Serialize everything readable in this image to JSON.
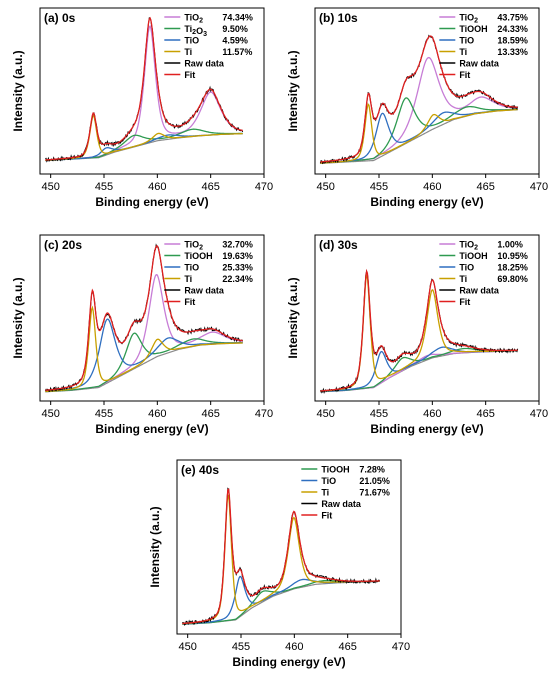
{
  "chart_data": [
    {
      "type": "line",
      "title": "(a) 0s",
      "xlabel": "Binding energy (eV)",
      "ylabel": "Intensity (a.u.)",
      "xlim": [
        449,
        470
      ],
      "xticks": [
        "450",
        "455",
        "460",
        "465",
        "470"
      ],
      "grid": false,
      "legend_position": "top-right",
      "legend": [
        {
          "name": "TiO",
          "sub": "2",
          "value": "74.34%",
          "color": "#c77dd6"
        },
        {
          "name": "Ti",
          "sub": "2",
          "name2": "O",
          "sub2": "3",
          "value": "9.50%",
          "color": "#2e9a50"
        },
        {
          "name": "TiO",
          "sub": "",
          "value": "4.59%",
          "color": "#2f6fc0"
        },
        {
          "name": "Ti",
          "sub": "",
          "value": "11.57%",
          "color": "#c8a000"
        },
        {
          "name": "Raw data",
          "sub": "",
          "value": "",
          "color": "#000000"
        },
        {
          "name": "Fit",
          "sub": "",
          "value": "",
          "color": "#e02020"
        }
      ],
      "background": {
        "x": [
          449.5,
          452,
          454.5,
          456,
          458,
          460,
          462,
          464,
          466,
          468
        ],
        "y": [
          0.06,
          0.07,
          0.08,
          0.12,
          0.16,
          0.2,
          0.22,
          0.235,
          0.245,
          0.25
        ]
      },
      "components": [
        {
          "name": "TiO2",
          "color": "#c77dd6",
          "peaks": [
            {
              "c": 459.3,
              "h": 0.82,
              "w": 0.55
            },
            {
              "c": 465.0,
              "h": 0.3,
              "w": 1.0
            }
          ]
        },
        {
          "name": "Ti2O3",
          "color": "#2e9a50",
          "peaks": [
            {
              "c": 457.8,
              "h": 0.08,
              "w": 1.0
            },
            {
              "c": 463.3,
              "h": 0.05,
              "w": 1.2
            }
          ]
        },
        {
          "name": "TiO",
          "color": "#2f6fc0",
          "peaks": [
            {
              "c": 455.2,
              "h": 0.05,
              "w": 0.6
            },
            {
              "c": 461.0,
              "h": 0.03,
              "w": 1.0
            }
          ]
        },
        {
          "name": "Ti",
          "color": "#c8a000",
          "peaks": [
            {
              "c": 454.0,
              "h": 0.3,
              "w": 0.35
            },
            {
              "c": 460.1,
              "h": 0.05,
              "w": 0.6
            }
          ]
        }
      ]
    },
    {
      "type": "line",
      "title": "(b) 10s",
      "xlabel": "Binding energy (eV)",
      "ylabel": "Intensity (a.u.)",
      "xlim": [
        449,
        470
      ],
      "xticks": [
        "450",
        "455",
        "460",
        "465",
        "470"
      ],
      "grid": false,
      "legend_position": "top-right",
      "legend": [
        {
          "name": "TiO",
          "sub": "2",
          "value": "43.75%",
          "color": "#c77dd6"
        },
        {
          "name": "TiOOH",
          "sub": "",
          "value": "24.33%",
          "color": "#2e9a50"
        },
        {
          "name": "TiO",
          "sub": "",
          "value": "18.59%",
          "color": "#2f6fc0"
        },
        {
          "name": "Ti",
          "sub": "",
          "value": "13.33%",
          "color": "#c8a000"
        },
        {
          "name": "Raw data",
          "sub": "",
          "value": "",
          "color": "#000000"
        },
        {
          "name": "Fit",
          "sub": "",
          "value": "",
          "color": "#e02020"
        }
      ],
      "background": {
        "x": [
          449.5,
          452,
          454.5,
          456,
          458,
          460,
          462,
          464,
          466,
          468
        ],
        "y": [
          0.04,
          0.05,
          0.06,
          0.12,
          0.2,
          0.28,
          0.35,
          0.39,
          0.41,
          0.42
        ]
      },
      "components": [
        {
          "name": "TiO2",
          "color": "#c77dd6",
          "peaks": [
            {
              "c": 459.6,
              "h": 0.52,
              "w": 1.1
            },
            {
              "c": 464.6,
              "h": 0.1,
              "w": 1.2
            }
          ]
        },
        {
          "name": "TiOOH",
          "color": "#2e9a50",
          "peaks": [
            {
              "c": 457.5,
              "h": 0.32,
              "w": 0.9
            },
            {
              "c": 463.2,
              "h": 0.06,
              "w": 1.2
            }
          ]
        },
        {
          "name": "TiO",
          "color": "#2f6fc0",
          "peaks": [
            {
              "c": 455.3,
              "h": 0.3,
              "w": 0.65
            },
            {
              "c": 461.0,
              "h": 0.08,
              "w": 1.0
            }
          ]
        },
        {
          "name": "Ti",
          "color": "#c8a000",
          "peaks": [
            {
              "c": 454.0,
              "h": 0.4,
              "w": 0.35
            },
            {
              "c": 460.1,
              "h": 0.1,
              "w": 0.6
            }
          ]
        }
      ]
    },
    {
      "type": "line",
      "title": "(c) 20s",
      "xlabel": "Binding energy (eV)",
      "ylabel": "Intensity (a.u.)",
      "xlim": [
        449,
        470
      ],
      "xticks": [
        "450",
        "455",
        "460",
        "465",
        "470"
      ],
      "grid": false,
      "legend_position": "top-right",
      "legend": [
        {
          "name": "TiO",
          "sub": "2",
          "value": "32.70%",
          "color": "#c77dd6"
        },
        {
          "name": "TiOOH",
          "sub": "",
          "value": "19.63%",
          "color": "#2e9a50"
        },
        {
          "name": "TiO",
          "sub": "",
          "value": "25.33%",
          "color": "#2f6fc0"
        },
        {
          "name": "Ti",
          "sub": "",
          "value": "22.34%",
          "color": "#c8a000"
        },
        {
          "name": "Raw data",
          "sub": "",
          "value": "",
          "color": "#000000"
        },
        {
          "name": "Fit",
          "sub": "",
          "value": "",
          "color": "#e02020"
        }
      ],
      "background": {
        "x": [
          449.5,
          452,
          454.5,
          456,
          458,
          460,
          462,
          464,
          466,
          468
        ],
        "y": [
          0.03,
          0.04,
          0.06,
          0.12,
          0.2,
          0.28,
          0.33,
          0.36,
          0.37,
          0.375
        ]
      },
      "components": [
        {
          "name": "TiO2",
          "color": "#c77dd6",
          "peaks": [
            {
              "c": 459.9,
              "h": 0.58,
              "w": 0.75
            },
            {
              "c": 465.2,
              "h": 0.08,
              "w": 1.2
            }
          ]
        },
        {
          "name": "TiOOH",
          "color": "#2e9a50",
          "peaks": [
            {
              "c": 457.8,
              "h": 0.25,
              "w": 0.8
            },
            {
              "c": 463.3,
              "h": 0.05,
              "w": 1.2
            }
          ]
        },
        {
          "name": "TiO",
          "color": "#2f6fc0",
          "peaks": [
            {
              "c": 455.3,
              "h": 0.45,
              "w": 0.8
            },
            {
              "c": 461.0,
              "h": 0.1,
              "w": 1.0
            }
          ]
        },
        {
          "name": "Ti",
          "color": "#c8a000",
          "peaks": [
            {
              "c": 453.9,
              "h": 0.57,
              "w": 0.35
            },
            {
              "c": 460.0,
              "h": 0.12,
              "w": 0.6
            }
          ]
        }
      ]
    },
    {
      "type": "line",
      "title": "(d) 30s",
      "xlabel": "Binding energy (eV)",
      "ylabel": "Intensity (a.u.)",
      "xlim": [
        449,
        470
      ],
      "xticks": [
        "450",
        "455",
        "460",
        "465",
        "470"
      ],
      "grid": false,
      "legend_position": "top-right",
      "legend": [
        {
          "name": "TiO",
          "sub": "2",
          "value": "1.00%",
          "color": "#c77dd6"
        },
        {
          "name": "TiOOH",
          "sub": "",
          "value": "10.95%",
          "color": "#2e9a50"
        },
        {
          "name": "TiO",
          "sub": "",
          "value": "18.25%",
          "color": "#2f6fc0"
        },
        {
          "name": "Ti",
          "sub": "",
          "value": "69.80%",
          "color": "#c8a000"
        },
        {
          "name": "Raw data",
          "sub": "",
          "value": "",
          "color": "#000000"
        },
        {
          "name": "Fit",
          "sub": "",
          "value": "",
          "color": "#e02020"
        }
      ],
      "background": {
        "x": [
          449.5,
          452,
          454.5,
          456,
          458,
          460,
          462,
          464,
          466,
          468
        ],
        "y": [
          0.03,
          0.04,
          0.06,
          0.13,
          0.21,
          0.27,
          0.3,
          0.31,
          0.315,
          0.32
        ]
      },
      "components": [
        {
          "name": "TiO2",
          "color": "#c77dd6",
          "peaks": [
            {
              "c": 459.5,
              "h": 0.03,
              "w": 1.0
            }
          ]
        },
        {
          "name": "TiOOH",
          "color": "#2e9a50",
          "peaks": [
            {
              "c": 457.2,
              "h": 0.09,
              "w": 0.8
            },
            {
              "c": 463.0,
              "h": 0.03,
              "w": 1.2
            }
          ]
        },
        {
          "name": "TiO",
          "color": "#2f6fc0",
          "peaks": [
            {
              "c": 455.2,
              "h": 0.22,
              "w": 0.55
            },
            {
              "c": 460.9,
              "h": 0.06,
              "w": 1.0
            }
          ]
        },
        {
          "name": "Ti",
          "color": "#c8a000",
          "peaks": [
            {
              "c": 453.85,
              "h": 0.8,
              "w": 0.35
            },
            {
              "c": 460.0,
              "h": 0.48,
              "w": 0.55
            }
          ]
        }
      ]
    },
    {
      "type": "line",
      "title": "(e) 40s",
      "xlabel": "Binding energy (eV)",
      "ylabel": "Intensity (a.u.)",
      "xlim": [
        449,
        470
      ],
      "xticks": [
        "450",
        "455",
        "460",
        "465",
        "470"
      ],
      "grid": false,
      "legend_position": "top-right",
      "legend": [
        {
          "name": "TiOOH",
          "sub": "",
          "value": "7.28%",
          "color": "#2e9a50"
        },
        {
          "name": "TiO",
          "sub": "",
          "value": "21.05%",
          "color": "#2f6fc0"
        },
        {
          "name": "Ti",
          "sub": "",
          "value": "71.67%",
          "color": "#c8a000"
        },
        {
          "name": "Raw data",
          "sub": "",
          "value": "",
          "color": "#000000"
        },
        {
          "name": "Fit",
          "sub": "",
          "value": "",
          "color": "#e02020"
        }
      ],
      "background": {
        "x": [
          449.5,
          452,
          454.5,
          456,
          458,
          460,
          462,
          464,
          466,
          468
        ],
        "y": [
          0.03,
          0.04,
          0.06,
          0.14,
          0.22,
          0.27,
          0.3,
          0.31,
          0.315,
          0.32
        ]
      },
      "components": [
        {
          "name": "TiOOH",
          "color": "#2e9a50",
          "peaks": [
            {
              "c": 457.0,
              "h": 0.07,
              "w": 0.8
            },
            {
              "c": 462.8,
              "h": 0.02,
              "w": 1.2
            }
          ]
        },
        {
          "name": "TiO",
          "color": "#2f6fc0",
          "peaks": [
            {
              "c": 454.9,
              "h": 0.27,
              "w": 0.5
            },
            {
              "c": 460.7,
              "h": 0.05,
              "w": 1.0
            }
          ]
        },
        {
          "name": "Ti",
          "color": "#c8a000",
          "peaks": [
            {
              "c": 453.8,
              "h": 0.85,
              "w": 0.33
            },
            {
              "c": 459.95,
              "h": 0.48,
              "w": 0.55
            }
          ]
        }
      ]
    }
  ]
}
